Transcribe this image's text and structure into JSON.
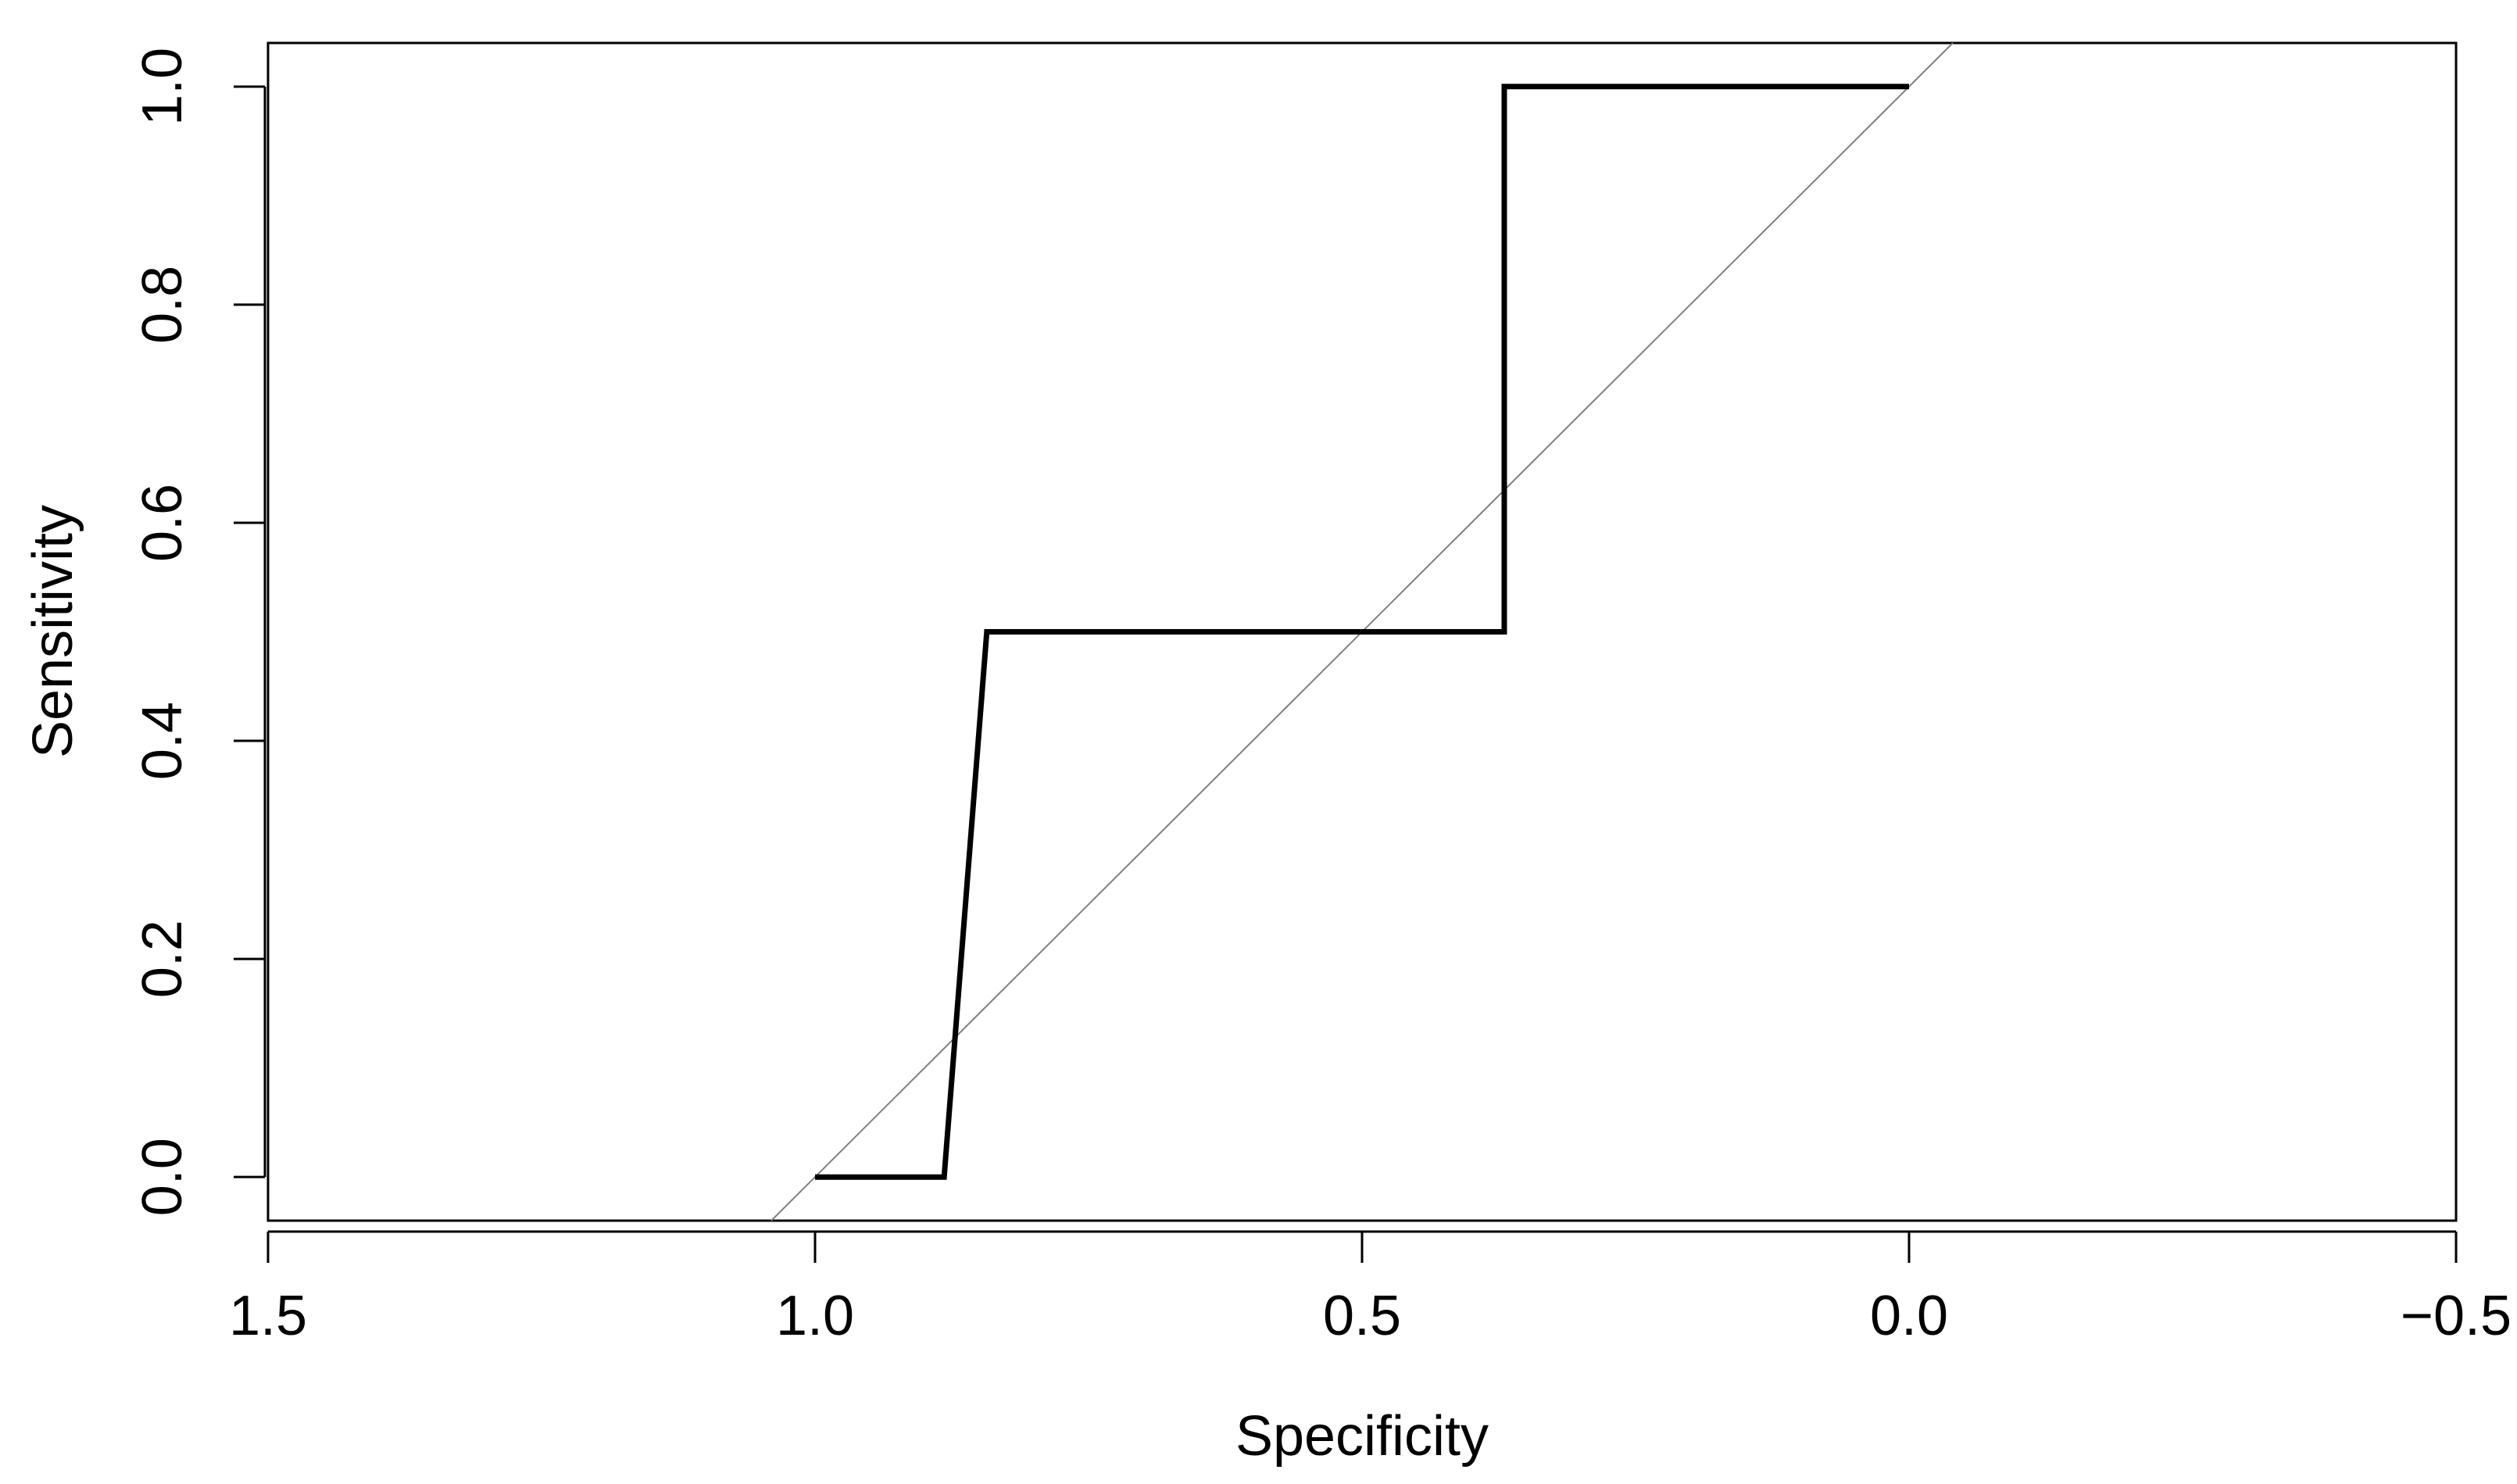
{
  "chart_data": {
    "type": "line",
    "title": "",
    "xlabel": "Specificity",
    "ylabel": "Sensitivity",
    "x_reversed": true,
    "xlim": [
      1.5,
      -0.5
    ],
    "ylim": [
      -0.04,
      1.04
    ],
    "x_ticks": [
      1.5,
      1.0,
      0.5,
      0.0,
      -0.5
    ],
    "x_tick_labels": [
      "1.5",
      "1.0",
      "0.5",
      "0.0",
      "−0.5"
    ],
    "y_ticks": [
      0.0,
      0.2,
      0.4,
      0.6,
      0.8,
      1.0
    ],
    "y_tick_labels": [
      "0.0",
      "0.2",
      "0.4",
      "0.6",
      "0.8",
      "1.0"
    ],
    "grid": false,
    "legend": "none",
    "series": [
      {
        "x": [
          1.0,
          0.882,
          0.843,
          0.37,
          0.37,
          0.0
        ],
        "y": [
          0.0,
          0.0,
          0.5,
          0.5,
          1.0,
          1.0
        ],
        "color": "#000000",
        "style": "solid"
      }
    ],
    "reference_line": {
      "description": "diagonal",
      "x": [
        1.04,
        -0.04
      ],
      "y": [
        -0.04,
        1.04
      ],
      "color": "#808080"
    }
  }
}
